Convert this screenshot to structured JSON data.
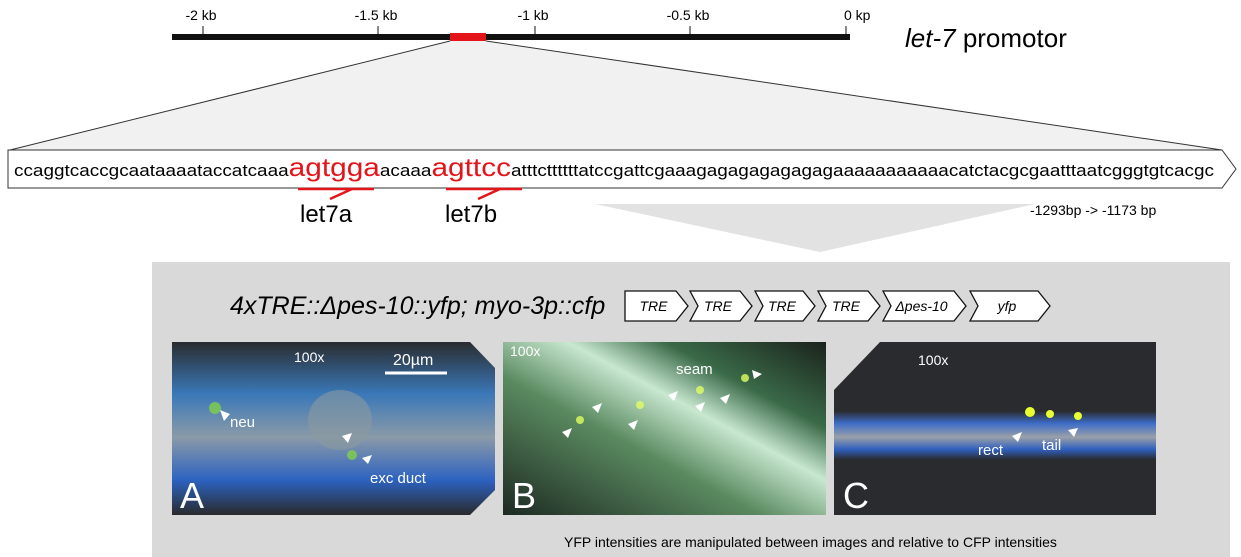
{
  "scale": {
    "ticks": [
      "-2 kb",
      "-1.5 kb",
      "-1 kb",
      "-0.5 kb",
      "0 kp"
    ],
    "title_italic": "let-7",
    "title_rest": "promotor"
  },
  "sequence": {
    "parts": [
      "ccaggtcaccgcaataaaataccatcaaa",
      "agtgga",
      "acaaa",
      "agttcc",
      "atttcttttttatccgattcgaaagagagagagagagaaaaaaaaaaacatctacgcgaatttaatcgggtgtcacgc"
    ],
    "sites": [
      "let7a",
      "let7b"
    ],
    "range": "-1293bp -> -1173 bp"
  },
  "construct": {
    "title": "4xTRE::Δpes-10::yfp; myo-3p::cfp",
    "elements": [
      "TRE",
      "TRE",
      "TRE",
      "TRE",
      "Δpes-10",
      "yfp"
    ]
  },
  "panels": [
    {
      "letter": "A",
      "magnification": "100x",
      "scale_bar": "20µm",
      "labels": [
        "neu",
        "exc duct"
      ]
    },
    {
      "letter": "B",
      "magnification": "100x",
      "labels": [
        "seam"
      ]
    },
    {
      "letter": "C",
      "magnification": "100x",
      "labels": [
        "rect",
        "tail"
      ]
    }
  ],
  "note": "YFP intensities are manipulated between images and relative to CFP intensities"
}
